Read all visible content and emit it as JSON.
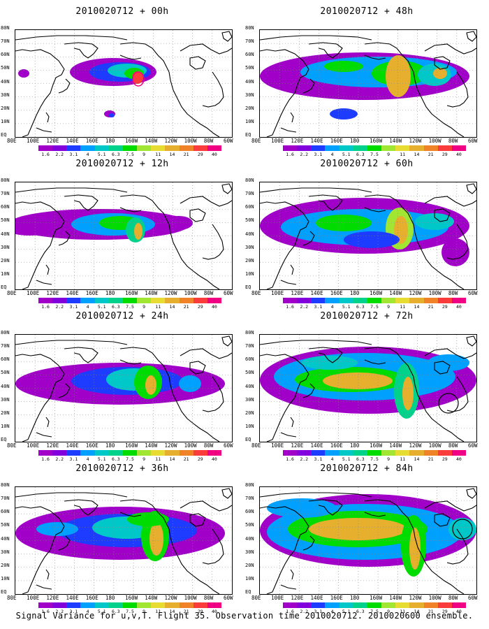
{
  "caption": "Signal Variance for u,v,T. Flight 35. Observation time 2010020712. 2010020600 ensemble.",
  "latitude_labels": [
    "80N",
    "70N",
    "60N",
    "50N",
    "40N",
    "30N",
    "20N",
    "10N",
    "EQ"
  ],
  "longitude_labels": [
    "80E",
    "100E",
    "120E",
    "140E",
    "160E",
    "180",
    "160W",
    "140W",
    "120W",
    "100W",
    "80W",
    "60W"
  ],
  "colorbar": {
    "levels": [
      "1.6",
      "2.2",
      "3.1",
      "4",
      "5.1",
      "6.3",
      "7.5",
      "9",
      "11",
      "14",
      "21",
      "29",
      "40"
    ],
    "colors": [
      "#a000c8",
      "#8200dc",
      "#1e3cff",
      "#00a0ff",
      "#00c8c8",
      "#00d28c",
      "#00dc00",
      "#a0e632",
      "#e6dc32",
      "#e6af2d",
      "#f08228",
      "#fa3c3c",
      "#f00082"
    ]
  },
  "panels": [
    {
      "title": "2010020712 + 00h",
      "lead_hours": 0
    },
    {
      "title": "2010020712 + 48h",
      "lead_hours": 48
    },
    {
      "title": "2010020712 + 12h",
      "lead_hours": 12
    },
    {
      "title": "2010020712 + 60h",
      "lead_hours": 60
    },
    {
      "title": "2010020712 + 24h",
      "lead_hours": 24
    },
    {
      "title": "2010020712 + 72h",
      "lead_hours": 72
    },
    {
      "title": "2010020712 + 36h",
      "lead_hours": 36
    },
    {
      "title": "2010020712 + 84h",
      "lead_hours": 84
    }
  ]
}
